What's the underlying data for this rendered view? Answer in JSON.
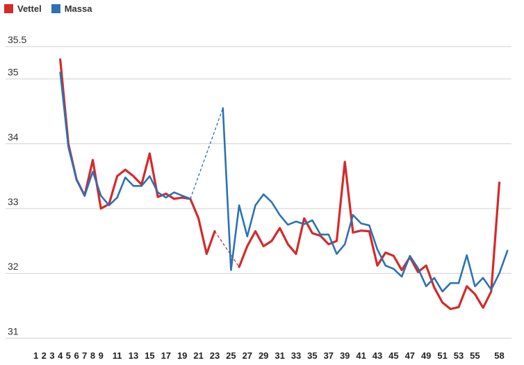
{
  "chart_data": {
    "type": "line",
    "title": "",
    "xlabel": "",
    "ylabel": "",
    "ylim": [
      31,
      35.5
    ],
    "yticks": [
      31,
      32,
      33,
      34,
      35,
      35.5
    ],
    "xlim": [
      1,
      58
    ],
    "xticks": [
      1,
      2,
      3,
      4,
      5,
      6,
      7,
      8,
      9,
      11,
      13,
      15,
      17,
      19,
      21,
      23,
      25,
      27,
      29,
      31,
      33,
      35,
      37,
      39,
      41,
      43,
      45,
      47,
      49,
      51,
      53,
      55,
      58
    ],
    "grid": true,
    "legend_position": "top-left",
    "series": [
      {
        "name": "Vettel",
        "color": "#d42a2a",
        "points": [
          [
            4,
            35.3
          ],
          [
            5,
            34.0
          ],
          [
            6,
            33.45
          ],
          [
            7,
            33.2
          ],
          [
            8,
            33.75
          ],
          [
            9,
            33.0
          ],
          [
            10,
            33.07
          ],
          [
            11,
            33.5
          ],
          [
            12,
            33.6
          ],
          [
            13,
            33.5
          ],
          [
            14,
            33.37
          ],
          [
            15,
            33.85
          ],
          [
            16,
            33.18
          ],
          [
            17,
            33.23
          ],
          [
            18,
            33.15
          ],
          [
            19,
            33.17
          ],
          [
            20,
            33.15
          ],
          [
            21,
            32.85
          ],
          [
            22,
            32.3
          ],
          [
            23,
            32.65
          ],
          [
            26,
            32.1
          ],
          [
            27,
            32.42
          ],
          [
            28,
            32.65
          ],
          [
            29,
            32.42
          ],
          [
            30,
            32.5
          ],
          [
            31,
            32.7
          ],
          [
            32,
            32.45
          ],
          [
            33,
            32.3
          ],
          [
            34,
            32.85
          ],
          [
            35,
            32.62
          ],
          [
            36,
            32.58
          ],
          [
            37,
            32.45
          ],
          [
            38,
            32.5
          ],
          [
            39,
            33.72
          ],
          [
            40,
            32.63
          ],
          [
            41,
            32.66
          ],
          [
            42,
            32.65
          ],
          [
            43,
            32.12
          ],
          [
            44,
            32.32
          ],
          [
            45,
            32.27
          ],
          [
            46,
            32.05
          ],
          [
            47,
            32.25
          ],
          [
            48,
            32.02
          ],
          [
            49,
            32.12
          ],
          [
            50,
            31.78
          ],
          [
            51,
            31.55
          ],
          [
            52,
            31.45
          ],
          [
            53,
            31.48
          ],
          [
            54,
            31.8
          ],
          [
            55,
            31.68
          ],
          [
            56,
            31.47
          ],
          [
            57,
            31.72
          ],
          [
            58,
            33.4
          ]
        ],
        "connectors": [
          [
            [
              23,
              32.65
            ],
            [
              26,
              32.1
            ]
          ]
        ]
      },
      {
        "name": "Massa",
        "color": "#2b72b4",
        "points": [
          [
            4,
            35.1
          ],
          [
            5,
            33.95
          ],
          [
            6,
            33.45
          ],
          [
            7,
            33.2
          ],
          [
            8,
            33.57
          ],
          [
            9,
            33.2
          ],
          [
            10,
            33.05
          ],
          [
            11,
            33.17
          ],
          [
            12,
            33.48
          ],
          [
            13,
            33.35
          ],
          [
            14,
            33.35
          ],
          [
            15,
            33.5
          ],
          [
            16,
            33.25
          ],
          [
            17,
            33.17
          ],
          [
            18,
            33.25
          ],
          [
            19,
            33.2
          ],
          [
            20,
            33.15
          ],
          [
            24,
            34.55
          ],
          [
            25,
            32.05
          ],
          [
            26,
            33.05
          ],
          [
            27,
            32.57
          ],
          [
            28,
            33.05
          ],
          [
            29,
            33.22
          ],
          [
            30,
            33.1
          ],
          [
            31,
            32.9
          ],
          [
            32,
            32.75
          ],
          [
            33,
            32.8
          ],
          [
            34,
            32.76
          ],
          [
            35,
            32.82
          ],
          [
            36,
            32.6
          ],
          [
            37,
            32.6
          ],
          [
            38,
            32.3
          ],
          [
            39,
            32.45
          ],
          [
            40,
            32.9
          ],
          [
            41,
            32.77
          ],
          [
            42,
            32.74
          ],
          [
            43,
            32.37
          ],
          [
            44,
            32.12
          ],
          [
            45,
            32.07
          ],
          [
            46,
            31.95
          ],
          [
            47,
            32.27
          ],
          [
            48,
            32.08
          ],
          [
            49,
            31.8
          ],
          [
            50,
            31.93
          ],
          [
            51,
            31.72
          ],
          [
            52,
            31.85
          ],
          [
            53,
            31.85
          ],
          [
            54,
            32.28
          ],
          [
            55,
            31.8
          ],
          [
            56,
            31.93
          ],
          [
            57,
            31.75
          ],
          [
            58,
            32.0
          ],
          [
            59,
            32.35
          ]
        ],
        "connectors": [
          [
            [
              20,
              33.15
            ],
            [
              24,
              34.55
            ]
          ]
        ]
      }
    ]
  }
}
